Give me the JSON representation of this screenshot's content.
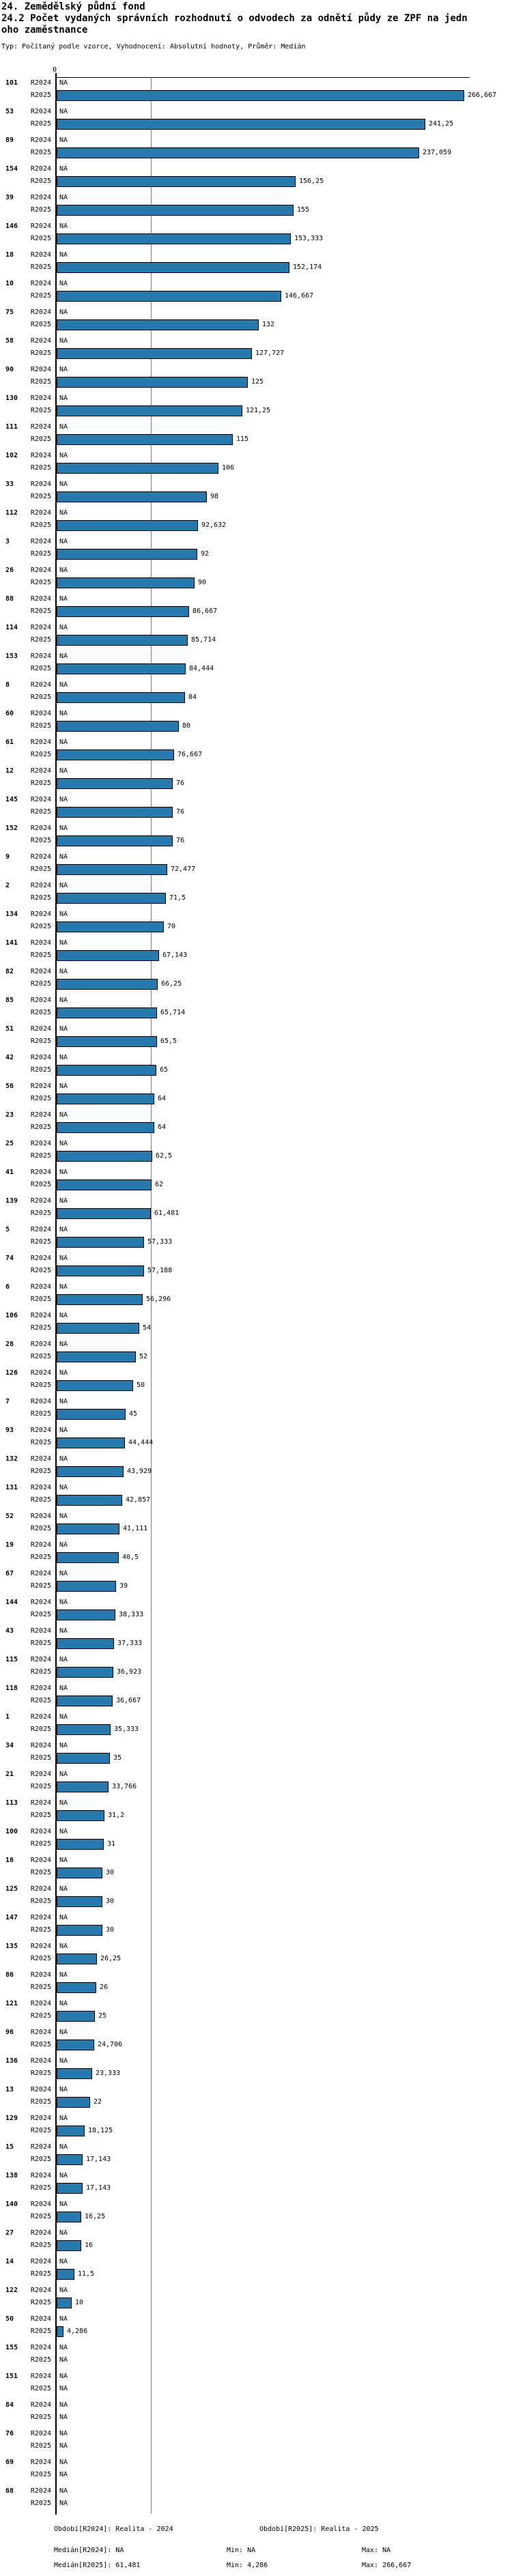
{
  "title": {
    "line1": "24. Zemědělský půdní fond",
    "line2": "24.2 Počet vydaných správních rozhodnutí o odvodech za odnětí půdy ze ZPF na jedn",
    "line3": "oho zaměstnance"
  },
  "subtitle": "Typ: Počítaný podle vzorce, Vyhodnocení: Absolutní hodnoty, Průměr: Medián",
  "colors": {
    "bar": "#2878ae",
    "median_line": "#4a8fc0",
    "axis": "#000000"
  },
  "chart_data": {
    "type": "bar",
    "orientation": "horizontal",
    "title": "24.2 Počet vydaných správních rozhodnutí o odvodech za odnětí půdy ze ZPF na jednoho zaměstnance",
    "xlim": [
      0,
      266.667
    ],
    "grid": false,
    "value_format": "decimal-comma",
    "series_names": [
      "R2024",
      "R2025"
    ],
    "axis": {
      "zero_tick_label": "0",
      "median_line_value": 61.481
    },
    "rows": [
      [
        "101",
        "NA",
        "266,667"
      ],
      [
        "53",
        "NA",
        "241,25"
      ],
      [
        "89",
        "NA",
        "237,059"
      ],
      [
        "154",
        "NA",
        "156,25"
      ],
      [
        "39",
        "NA",
        "155"
      ],
      [
        "146",
        "NA",
        "153,333"
      ],
      [
        "18",
        "NA",
        "152,174"
      ],
      [
        "10",
        "NA",
        "146,667"
      ],
      [
        "75",
        "NA",
        "132"
      ],
      [
        "58",
        "NA",
        "127,727"
      ],
      [
        "90",
        "NA",
        "125"
      ],
      [
        "130",
        "NA",
        "121,25"
      ],
      [
        "111",
        "NA",
        "115"
      ],
      [
        "102",
        "NA",
        "106"
      ],
      [
        "33",
        "NA",
        "98"
      ],
      [
        "112",
        "NA",
        "92,632"
      ],
      [
        "3",
        "NA",
        "92"
      ],
      [
        "26",
        "NA",
        "90"
      ],
      [
        "88",
        "NA",
        "86,667"
      ],
      [
        "114",
        "NA",
        "85,714"
      ],
      [
        "153",
        "NA",
        "84,444"
      ],
      [
        "8",
        "NA",
        "84"
      ],
      [
        "60",
        "NA",
        "80"
      ],
      [
        "61",
        "NA",
        "76,667"
      ],
      [
        "12",
        "NA",
        "76"
      ],
      [
        "145",
        "NA",
        "76"
      ],
      [
        "152",
        "NA",
        "76"
      ],
      [
        "9",
        "NA",
        "72,477"
      ],
      [
        "2",
        "NA",
        "71,5"
      ],
      [
        "134",
        "NA",
        "70"
      ],
      [
        "141",
        "NA",
        "67,143"
      ],
      [
        "82",
        "NA",
        "66,25"
      ],
      [
        "85",
        "NA",
        "65,714"
      ],
      [
        "51",
        "NA",
        "65,5"
      ],
      [
        "42",
        "NA",
        "65"
      ],
      [
        "56",
        "NA",
        "64"
      ],
      [
        "23",
        "NA",
        "64"
      ],
      [
        "25",
        "NA",
        "62,5"
      ],
      [
        "41",
        "NA",
        "62"
      ],
      [
        "139",
        "NA",
        "61,481"
      ],
      [
        "5",
        "NA",
        "57,333"
      ],
      [
        "74",
        "NA",
        "57,188"
      ],
      [
        "6",
        "NA",
        "56,296"
      ],
      [
        "106",
        "NA",
        "54"
      ],
      [
        "28",
        "NA",
        "52"
      ],
      [
        "126",
        "NA",
        "50"
      ],
      [
        "7",
        "NA",
        "45"
      ],
      [
        "93",
        "NA",
        "44,444"
      ],
      [
        "132",
        "NA",
        "43,929"
      ],
      [
        "131",
        "NA",
        "42,857"
      ],
      [
        "52",
        "NA",
        "41,111"
      ],
      [
        "19",
        "NA",
        "40,5"
      ],
      [
        "67",
        "NA",
        "39"
      ],
      [
        "144",
        "NA",
        "38,333"
      ],
      [
        "43",
        "NA",
        "37,333"
      ],
      [
        "115",
        "NA",
        "36,923"
      ],
      [
        "118",
        "NA",
        "36,667"
      ],
      [
        "1",
        "NA",
        "35,333"
      ],
      [
        "34",
        "NA",
        "35"
      ],
      [
        "21",
        "NA",
        "33,766"
      ],
      [
        "113",
        "NA",
        "31,2"
      ],
      [
        "100",
        "NA",
        "31"
      ],
      [
        "16",
        "NA",
        "30"
      ],
      [
        "125",
        "NA",
        "30"
      ],
      [
        "147",
        "NA",
        "30"
      ],
      [
        "135",
        "NA",
        "26,25"
      ],
      [
        "86",
        "NA",
        "26"
      ],
      [
        "121",
        "NA",
        "25"
      ],
      [
        "96",
        "NA",
        "24,706"
      ],
      [
        "136",
        "NA",
        "23,333"
      ],
      [
        "13",
        "NA",
        "22"
      ],
      [
        "129",
        "NA",
        "18,125"
      ],
      [
        "15",
        "NA",
        "17,143"
      ],
      [
        "138",
        "NA",
        "17,143"
      ],
      [
        "140",
        "NA",
        "16,25"
      ],
      [
        "27",
        "NA",
        "16"
      ],
      [
        "14",
        "NA",
        "11,5"
      ],
      [
        "122",
        "NA",
        "10"
      ],
      [
        "50",
        "NA",
        "4,286"
      ],
      [
        "155",
        "NA",
        "NA"
      ],
      [
        "151",
        "NA",
        "NA"
      ],
      [
        "84",
        "NA",
        "NA"
      ],
      [
        "76",
        "NA",
        "NA"
      ],
      [
        "69",
        "NA",
        "NA"
      ],
      [
        "68",
        "NA",
        "NA"
      ]
    ],
    "legend_position": "bottom"
  },
  "legend": {
    "period_r2024": "Období[R2024]: Realita - 2024",
    "period_r2025": "Období[R2025]: Realita - 2025",
    "median_r2024": "Medián[R2024]: NA",
    "min_r2024": "Min: NA",
    "max_r2024": "Max: NA",
    "median_r2025": "Medián[R2025]: 61,481",
    "min_r2025": "Min: 4,286",
    "max_r2025": "Max: 266,667"
  }
}
